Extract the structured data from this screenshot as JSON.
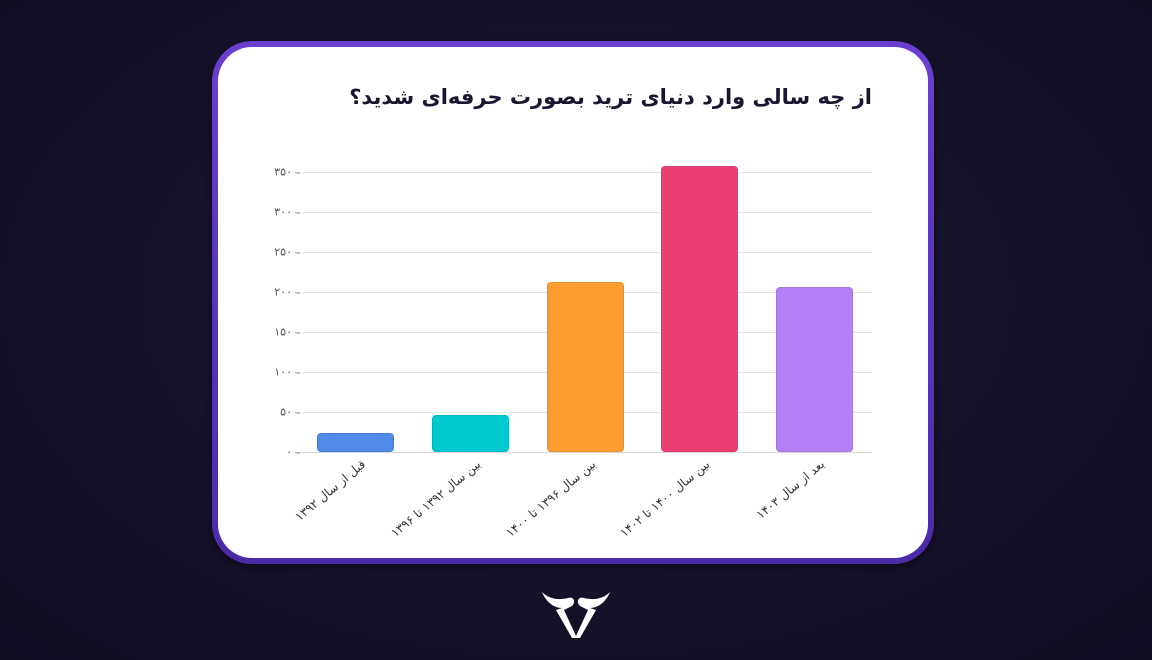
{
  "card": {
    "title": "از چه سالی وارد دنیای ترید بصورت حرفه‌ای شدید؟"
  },
  "colors": {
    "background": "#14102a",
    "card_border": "#5a33bf",
    "bars": [
      "#4f8ae8",
      "#00c9d0",
      "#fd9c31",
      "#ec4075",
      "#b580f5"
    ]
  },
  "chart_data": {
    "type": "bar",
    "title": "از چه سالی وارد دنیای ترید بصورت حرفه‌ای شدید؟",
    "xlabel": "",
    "ylabel": "",
    "categories": [
      "قبل از سال ۱۳۹۲",
      "بین سال ۱۳۹۲ تا ۱۳۹۶",
      "بین سال ۱۳۹۶ تا ۱۴۰۰",
      "بین سال ۱۴۰۰ تا ۱۴۰۲",
      "بعد از سال ۱۴۰۳"
    ],
    "values": [
      24,
      46,
      213,
      358,
      206
    ],
    "ylim": [
      0,
      375
    ],
    "yticks": [
      0,
      50,
      100,
      150,
      200,
      250,
      300,
      350
    ],
    "ytick_labels": [
      "۰",
      "۵۰",
      "۱۰۰",
      "۱۵۰",
      "۲۰۰",
      "۲۵۰",
      "۳۰۰",
      "۳۵۰"
    ],
    "grid": true,
    "legend": "none"
  },
  "logo": {
    "icon": "brand-bull-logo-icon"
  }
}
